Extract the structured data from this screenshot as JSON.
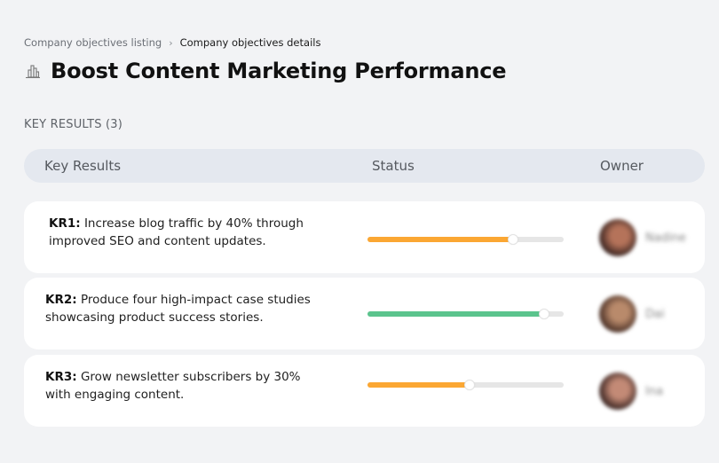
{
  "breadcrumb": {
    "items": [
      {
        "label": "Company objectives listing"
      },
      {
        "label": "Company objectives details"
      }
    ],
    "separator": "›"
  },
  "page": {
    "icon": "buildings-icon",
    "title": "Boost Content Marketing Performance"
  },
  "key_results_section": {
    "label": "KEY RESULTS (3)",
    "count": 3,
    "columns": {
      "key_results": "Key Results",
      "status": "Status",
      "owner": "Owner"
    },
    "rows": [
      {
        "id": "KR1:",
        "text": " Increase blog traffic by 40% through improved SEO and content updates.",
        "progress_percent": 74,
        "progress_color": "#fba733",
        "owner_name": "Nadine",
        "avatar_gradient": [
          "#3a2420",
          "#b5735a"
        ]
      },
      {
        "id": "KR2:",
        "text": " Produce four high-impact case studies showcasing product success stories.",
        "progress_percent": 90,
        "progress_color": "#5bc48d",
        "owner_name": "Dai",
        "avatar_gradient": [
          "#4a3026",
          "#b98a6b"
        ]
      },
      {
        "id": "KR3:",
        "text": " Grow newsletter subscribers by 30% with engaging content.",
        "progress_percent": 52,
        "progress_color": "#fba733",
        "owner_name": "Ina",
        "avatar_gradient": [
          "#3b2522",
          "#c38a76"
        ]
      }
    ]
  }
}
